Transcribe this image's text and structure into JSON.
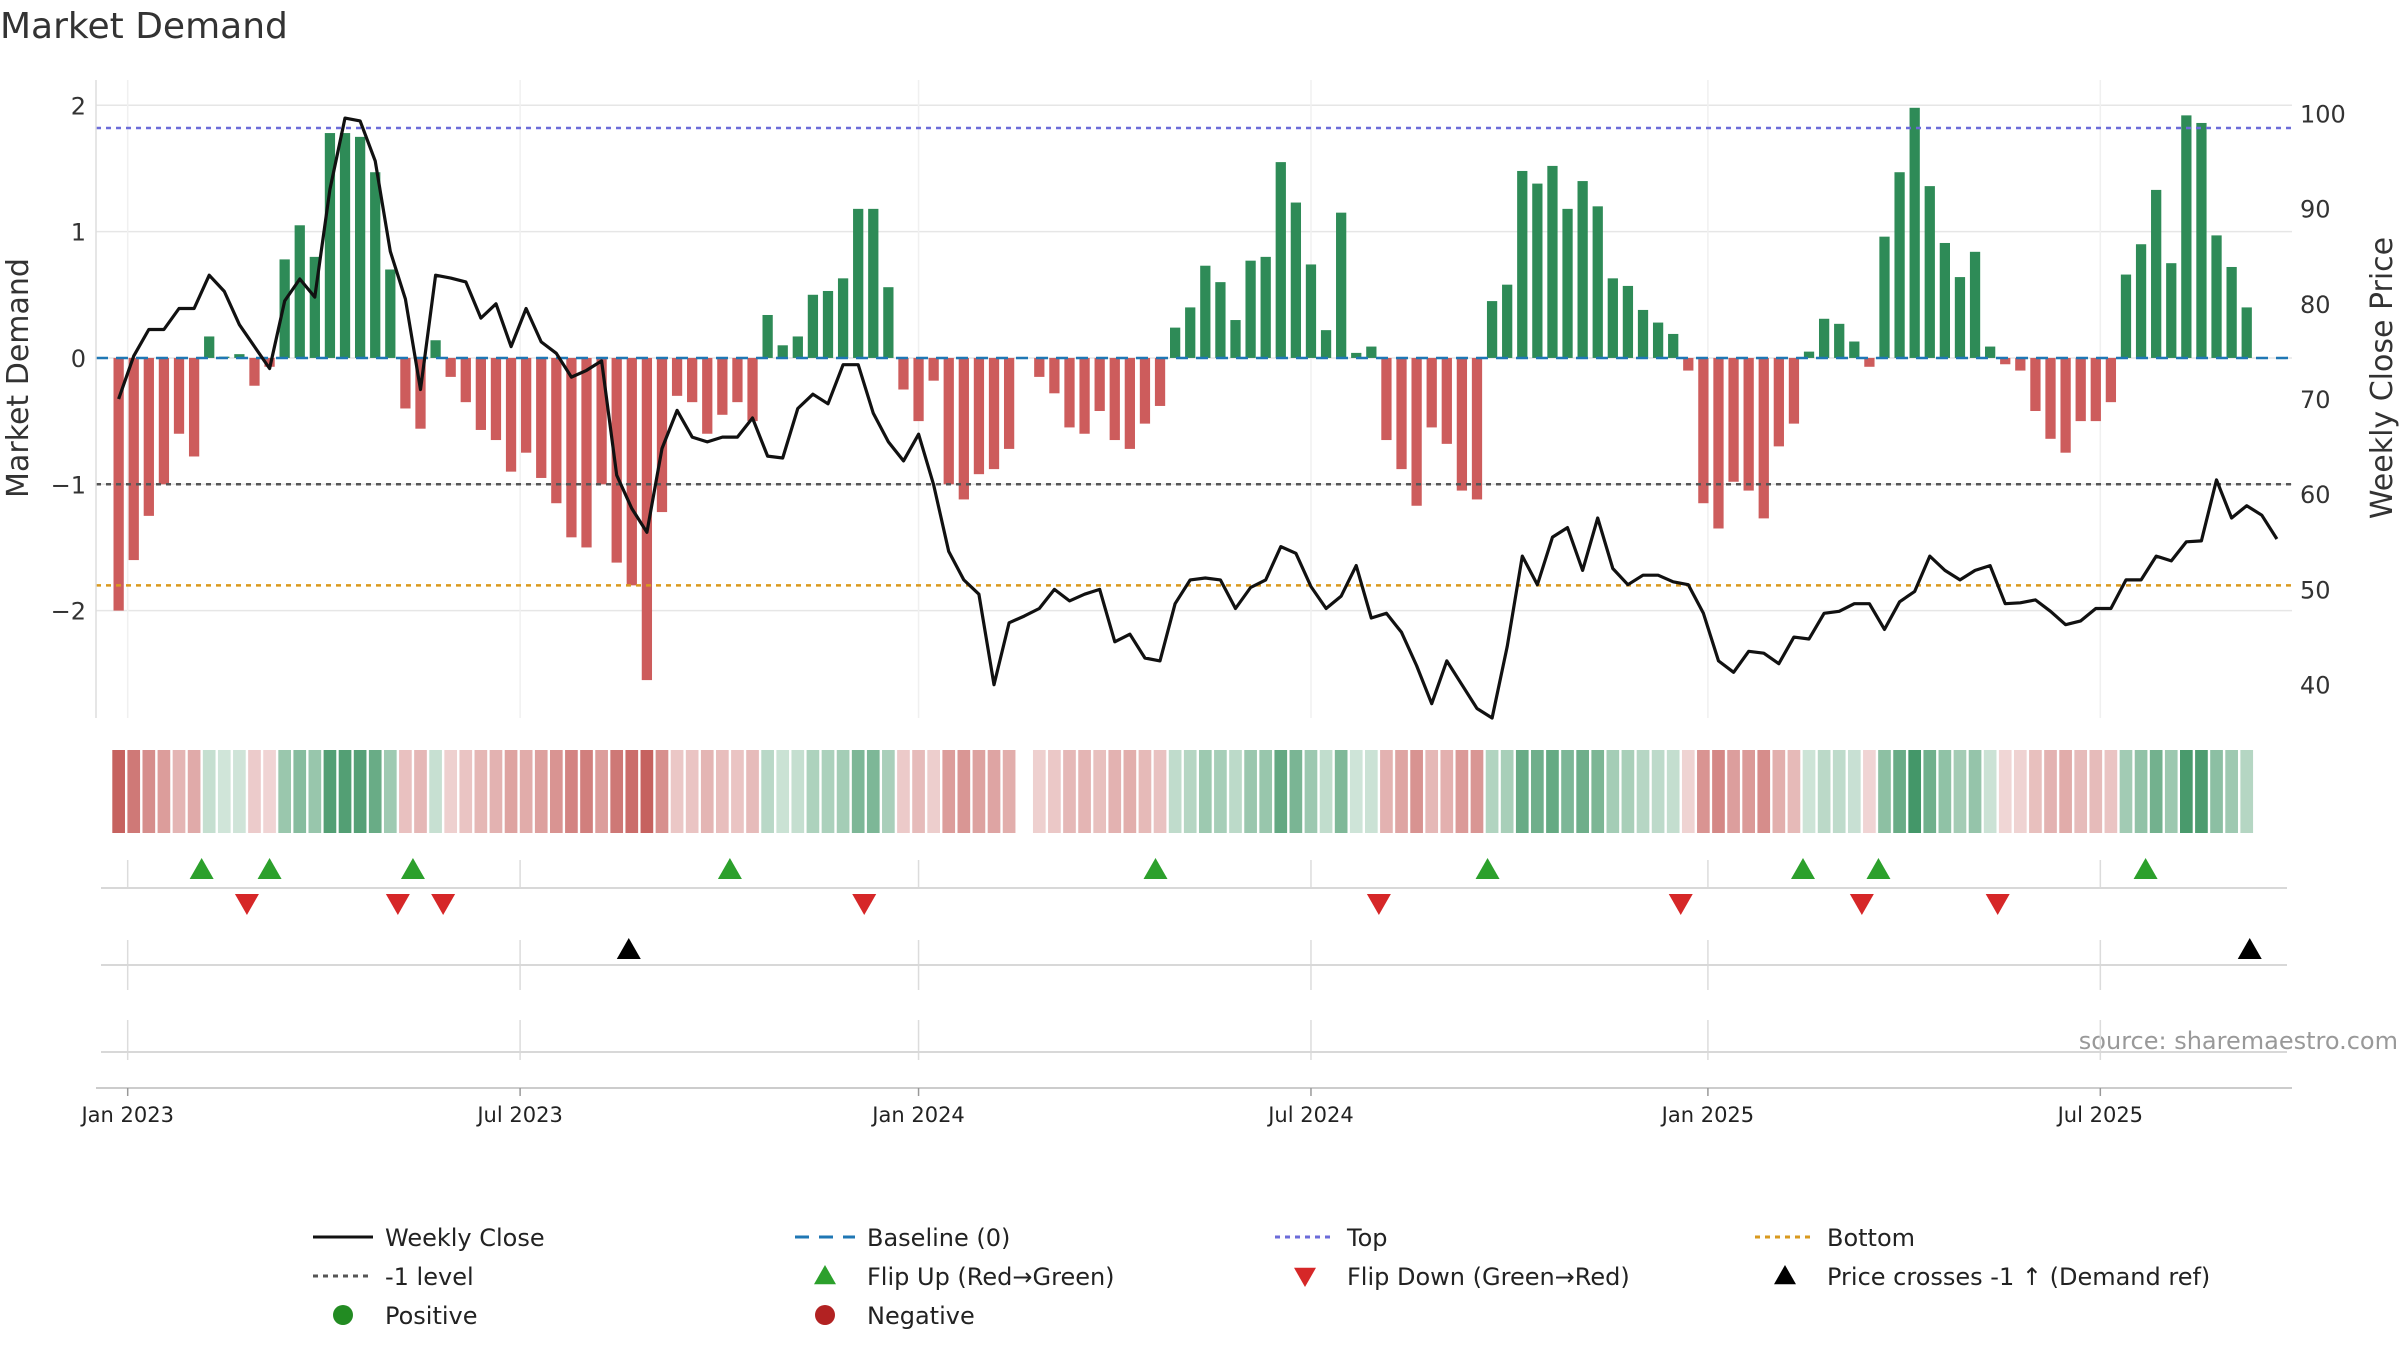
{
  "chart_data": {
    "type": "bar",
    "title": "Market Demand",
    "ylabel_left": "Market Demand",
    "ylabel_right": "Weekly Close Price",
    "ylim_left": [
      -2.85,
      2.2
    ],
    "ylim_right": [
      36.5,
      103.5
    ],
    "yticks_left": [
      2,
      1,
      0,
      -1,
      -2
    ],
    "ytick_labels_left": [
      "2",
      "1",
      "0",
      "−1",
      "−2"
    ],
    "yticks_right": [
      100,
      90,
      80,
      70,
      60,
      50,
      40
    ],
    "ytick_labels_right": [
      "100",
      "90",
      "80",
      "70",
      "60",
      "50",
      "40"
    ],
    "x_start_index": -1.5,
    "x_end_index": 144,
    "date_ticks": [
      {
        "index": 0.6,
        "label": "Jan 2023"
      },
      {
        "index": 26.6,
        "label": "Jul 2023"
      },
      {
        "index": 53,
        "label": "Jan 2024"
      },
      {
        "index": 79,
        "label": "Jul 2024"
      },
      {
        "index": 105.3,
        "label": "Jan 2025"
      },
      {
        "index": 131.3,
        "label": "Jul 2025"
      }
    ],
    "reference_lines": {
      "top": 1.82,
      "bottom": -1.8,
      "minus_one": -1.0,
      "baseline": 0
    },
    "demand": [
      -2.0,
      -1.6,
      -1.25,
      -1.0,
      -0.6,
      -0.78,
      0.17,
      0.01,
      0.03,
      -0.22,
      -0.07,
      0.78,
      1.05,
      0.8,
      1.78,
      1.78,
      1.75,
      1.47,
      0.7,
      -0.4,
      -0.56,
      0.14,
      -0.15,
      -0.35,
      -0.57,
      -0.65,
      -0.9,
      -0.75,
      -0.95,
      -1.15,
      -1.42,
      -1.5,
      -1.0,
      -1.62,
      -1.8,
      -2.55,
      -1.22,
      -0.3,
      -0.35,
      -0.6,
      -0.45,
      -0.35,
      -0.5,
      0.34,
      0.1,
      0.17,
      0.5,
      0.53,
      0.63,
      1.18,
      1.18,
      0.56,
      -0.25,
      -0.5,
      -0.18,
      -1.0,
      -1.12,
      -0.92,
      -0.88,
      -0.72,
      0,
      -0.15,
      -0.28,
      -0.55,
      -0.6,
      -0.42,
      -0.65,
      -0.72,
      -0.52,
      -0.38,
      0.24,
      0.4,
      0.73,
      0.6,
      0.3,
      0.77,
      0.8,
      1.55,
      1.23,
      0.74,
      0.22,
      1.15,
      0.04,
      0.09,
      -0.65,
      -0.88,
      -1.17,
      -0.55,
      -0.68,
      -1.05,
      -1.12,
      0.45,
      0.58,
      1.48,
      1.38,
      1.52,
      1.18,
      1.4,
      1.2,
      0.63,
      0.57,
      0.38,
      0.28,
      0.19,
      -0.1,
      -1.15,
      -1.35,
      -0.98,
      -1.05,
      -1.27,
      -0.7,
      -0.52,
      0.05,
      0.31,
      0.27,
      0.13,
      -0.07,
      0.96,
      1.47,
      1.98,
      1.36,
      0.91,
      0.64,
      0.84,
      0.09,
      -0.05,
      -0.1,
      -0.42,
      -0.64,
      -0.75,
      -0.5,
      -0.5,
      -0.35,
      0.66,
      0.9,
      1.33,
      0.75,
      1.92,
      1.86,
      0.97,
      0.72,
      0.4
    ],
    "close": [
      70.0,
      74.5,
      77.3,
      77.3,
      79.5,
      79.5,
      83.0,
      81.3,
      77.8,
      75.5,
      73.2,
      80.3,
      82.6,
      80.7,
      92.0,
      99.5,
      99.2,
      95.0,
      85.5,
      80.5,
      71.0,
      83.0,
      82.7,
      82.3,
      78.5,
      80.0,
      75.5,
      79.5,
      76.0,
      74.8,
      72.3,
      73.0,
      74.0,
      62.0,
      58.5,
      56.0,
      64.8,
      68.8,
      66.0,
      65.5,
      66.0,
      66.0,
      68.0,
      64.0,
      63.8,
      69.0,
      70.5,
      69.5,
      73.6,
      73.6,
      68.5,
      65.5,
      63.5,
      66.3,
      61.0,
      54.0,
      51.0,
      49.5,
      40.0,
      46.5,
      47.2,
      48.0,
      50.0,
      48.8,
      49.5,
      50.0,
      44.5,
      45.3,
      42.8,
      42.5,
      48.5,
      51.0,
      51.2,
      51.0,
      48.0,
      50.2,
      51.0,
      54.5,
      53.8,
      50.3,
      48.0,
      49.3,
      52.5,
      47.0,
      47.5,
      45.5,
      42.0,
      38.0,
      42.5,
      40.0,
      37.5,
      36.5,
      44.0,
      53.5,
      50.5,
      55.5,
      56.5,
      52.0,
      57.5,
      52.2,
      50.5,
      51.5,
      51.5,
      50.8,
      50.5,
      47.5,
      42.5,
      41.3,
      43.5,
      43.3,
      42.2,
      45.0,
      44.8,
      47.5,
      47.7,
      48.5,
      48.5,
      45.8,
      48.7,
      49.8,
      53.5,
      52.0,
      51.0,
      52.0,
      52.5,
      48.5,
      48.6,
      48.9,
      47.7,
      46.3,
      46.7,
      48.0,
      48.0,
      51.0,
      51.0,
      53.5,
      53.0,
      55.0,
      55.1,
      61.5,
      57.5,
      58.8,
      57.8,
      55.3
    ],
    "flip_up_index": [
      5.5,
      10.0,
      19.5,
      40.5,
      68.7,
      90.7,
      111.6,
      116.6,
      134.3
    ],
    "flip_down_index": [
      8.5,
      18.5,
      21.5,
      49.4,
      83.5,
      103.5,
      115.5,
      124.5
    ],
    "price_cross_index": [
      33.8,
      141.2
    ],
    "legend": [
      {
        "label": "Weekly Close",
        "marker": "solid-line",
        "color": "#111111"
      },
      {
        "label": "Baseline (0)",
        "marker": "dashed-line",
        "color": "#1f77b4"
      },
      {
        "label": "Top",
        "marker": "dotted-line",
        "color": "#6c6cd9"
      },
      {
        "label": "Bottom",
        "marker": "dotted-line",
        "color": "#d99a1f"
      },
      {
        "label": "-1 level",
        "marker": "dotted-line",
        "color": "#555555"
      },
      {
        "label": "Flip Up (Red→Green)",
        "marker": "triangle-up",
        "color": "#2ca02c"
      },
      {
        "label": "Flip Down (Green→Red)",
        "marker": "triangle-down",
        "color": "#d62728"
      },
      {
        "label": "Price crosses -1 ↑ (Demand ref)",
        "marker": "triangle-up",
        "color": "#000000"
      },
      {
        "label": "Positive",
        "marker": "circle",
        "color": "#228b22"
      },
      {
        "label": "Negative",
        "marker": "circle",
        "color": "#b22222"
      }
    ],
    "source": "source: sharemaestro.com"
  },
  "colors": {
    "positive_bar": "#2e8b57",
    "negative_bar": "#cd5c5c",
    "close_line": "#111111",
    "baseline": "#1f77b4",
    "top_line": "#6c6cd9",
    "bottom_line": "#d99a1f",
    "minus_one_line": "#555555",
    "grid": "#e6e6e6"
  }
}
